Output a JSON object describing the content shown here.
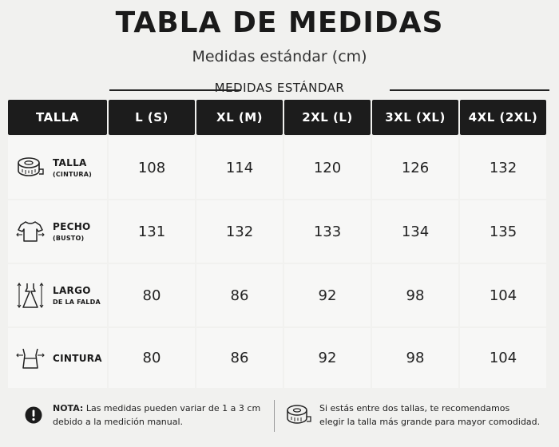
{
  "title": "TABLA DE MEDIDAS",
  "subtitle": "Medidas estándar (cm)",
  "section_label": "MEDIDAS ESTÁNDAR",
  "table": {
    "corner_label": "TALLA",
    "columns": [
      "L (S)",
      "XL (M)",
      "2XL (L)",
      "3XL (XL)",
      "4XL (2XL)"
    ],
    "rows": [
      {
        "label": "TALLA",
        "sublabel": "(CINTURA)",
        "icon": "measuring-tape-icon",
        "values": [
          "108",
          "114",
          "120",
          "126",
          "132"
        ]
      },
      {
        "label": "PECHO",
        "sublabel": "(BUSTO)",
        "icon": "shirt-icon",
        "values": [
          "131",
          "132",
          "133",
          "134",
          "135"
        ]
      },
      {
        "label": "LARGO",
        "sublabel": "DE LA FALDA",
        "icon": "dress-length-icon",
        "values": [
          "80",
          "86",
          "92",
          "98",
          "104"
        ]
      },
      {
        "label": "CINTURA",
        "sublabel": "",
        "icon": "waist-icon",
        "values": [
          "80",
          "86",
          "92",
          "98",
          "104"
        ]
      }
    ]
  },
  "footer": {
    "note_label": "NOTA:",
    "note_text": "Las medidas pueden variar de 1 a 3 cm",
    "note_text_2": "debido a la medición manual.",
    "note_icon": "exclamation-icon",
    "tip_icon": "measuring-tape-icon",
    "tip_text": "Si estás entre dos tallas, te recomendamos",
    "tip_text_2": "elegir la talla más grande para mayor comodidad."
  }
}
